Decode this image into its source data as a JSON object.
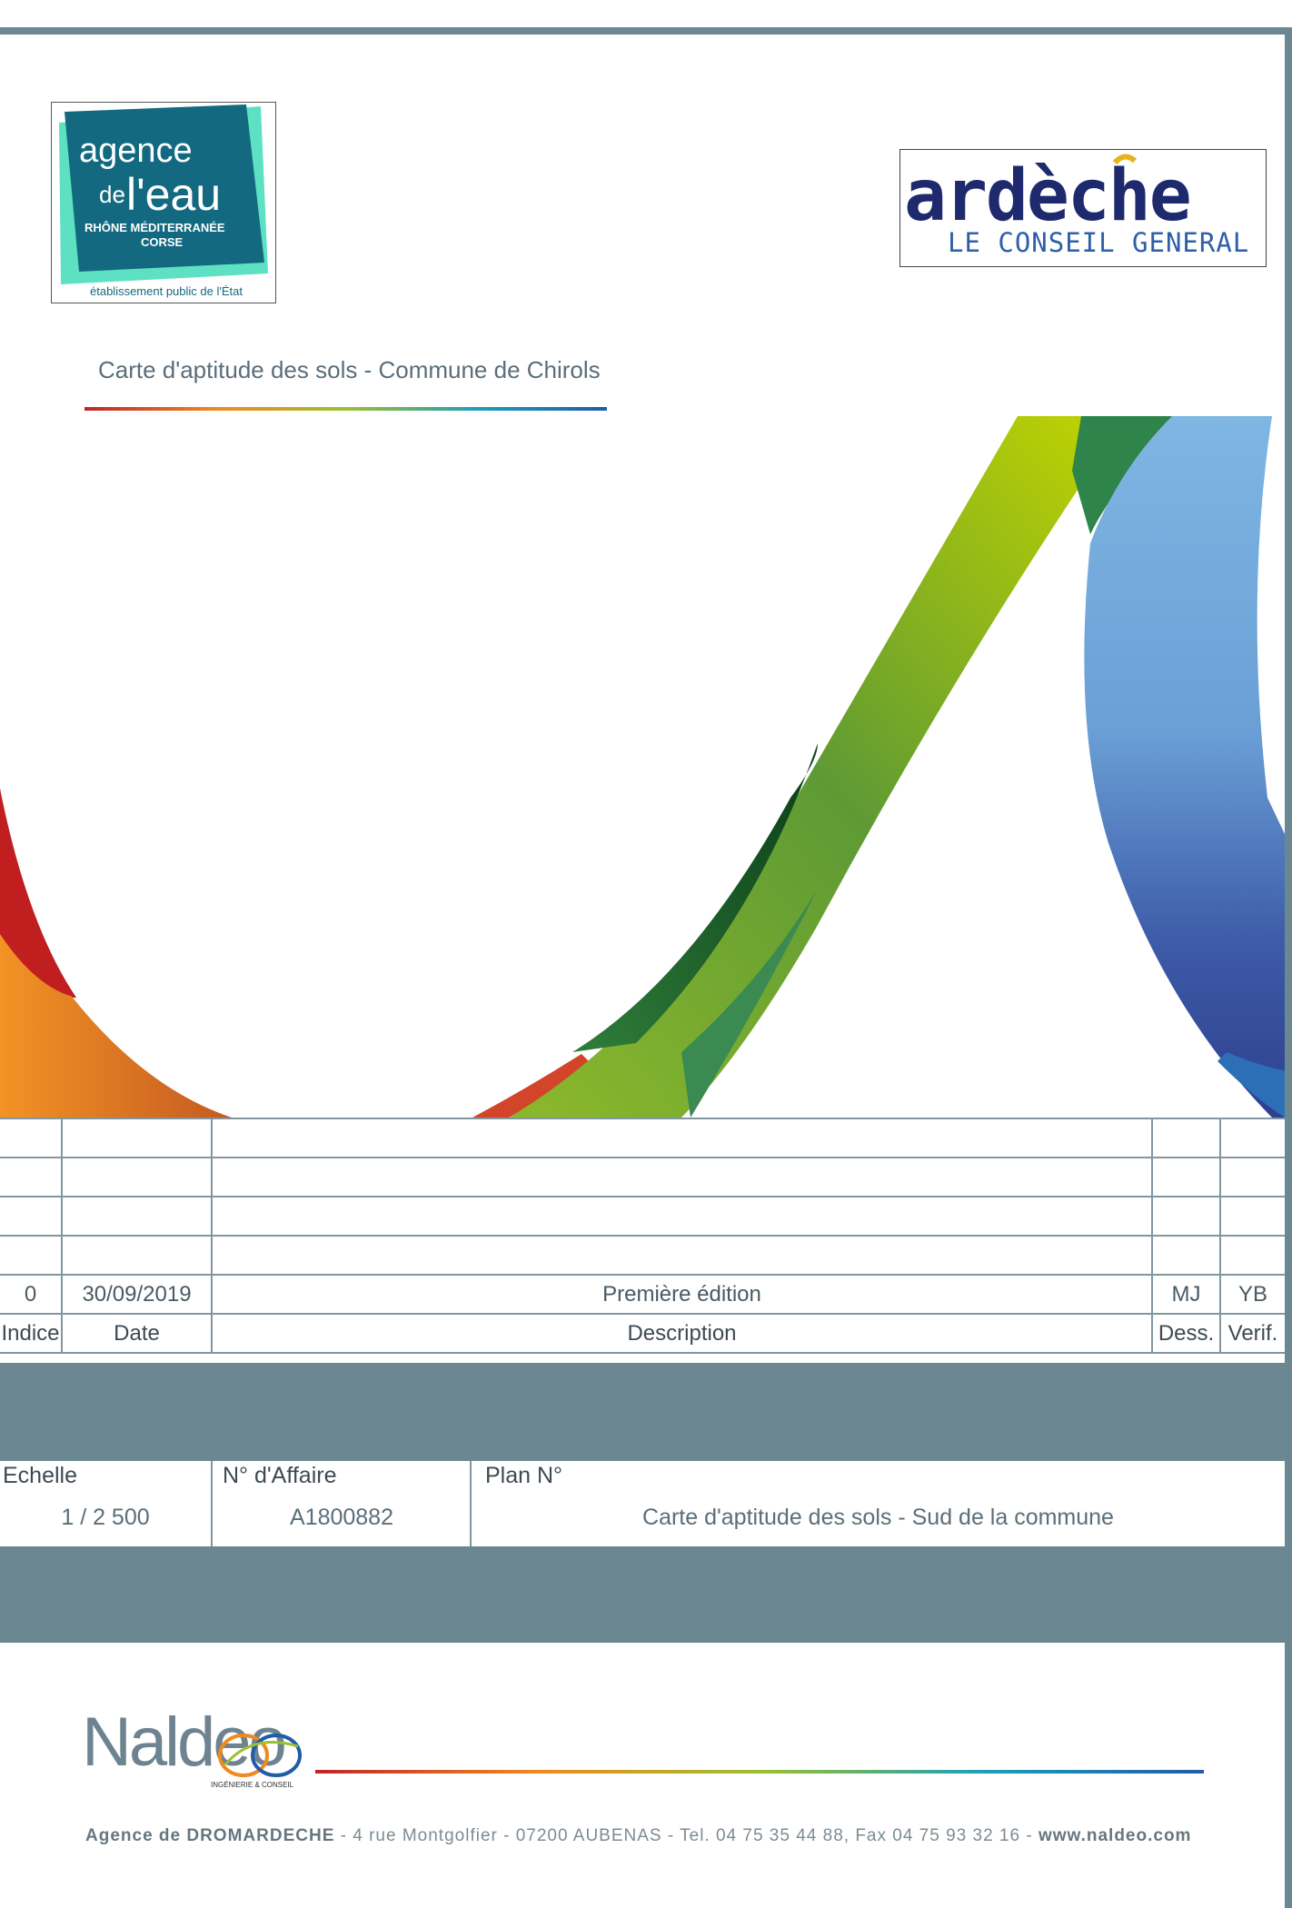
{
  "header": {
    "agence_logo": {
      "line1": "agence",
      "line2_small": "de",
      "line2_big": "l'eau",
      "line3": "RHÔNE MÉDITERRANÉE",
      "line4": "CORSE",
      "caption": "établissement public de l'État",
      "colors": {
        "tile": "#136a80",
        "accent": "#5ee0c2"
      }
    },
    "ardeche_logo": {
      "word": "ardèche",
      "subtitle": "LE CONSEIL GENERAL",
      "colors": {
        "word": "#1e2a6d",
        "subtitle": "#2f5fa8",
        "accent": "#e8b21c"
      }
    }
  },
  "title": "Carte d'aptitude des sols - Commune de Chirols",
  "revisions": {
    "headers": {
      "index": "Indice",
      "date": "Date",
      "description": "Description",
      "drawn": "Dess.",
      "checked": "Verif."
    },
    "rows": [
      {
        "index": "0",
        "date": "30/09/2019",
        "description": "Première édition",
        "drawn": "MJ",
        "checked": "YB"
      }
    ]
  },
  "info": {
    "scale_label": "Echelle",
    "scale_value": "1 / 2 500",
    "affaire_label": "N° d'Affaire",
    "affaire_value": "A1800882",
    "plan_label": "Plan N°",
    "plan_value": "Carte d'aptitude des sols - Sud de la commune"
  },
  "footer": {
    "brand": "Naldeo",
    "brand_tag": "INGÉNIERIE & CONSEIL",
    "address_strong": "Agence de DROMARDECHE",
    "address_rest": " - 4 rue Montgolfier - 07200 AUBENAS  - Tel. 04 75 35 44 88, Fax 04 75 93 32 16 - ",
    "website": "www.naldeo.com"
  },
  "colors": {
    "band": "#6a8792",
    "border": "#8196a1"
  }
}
